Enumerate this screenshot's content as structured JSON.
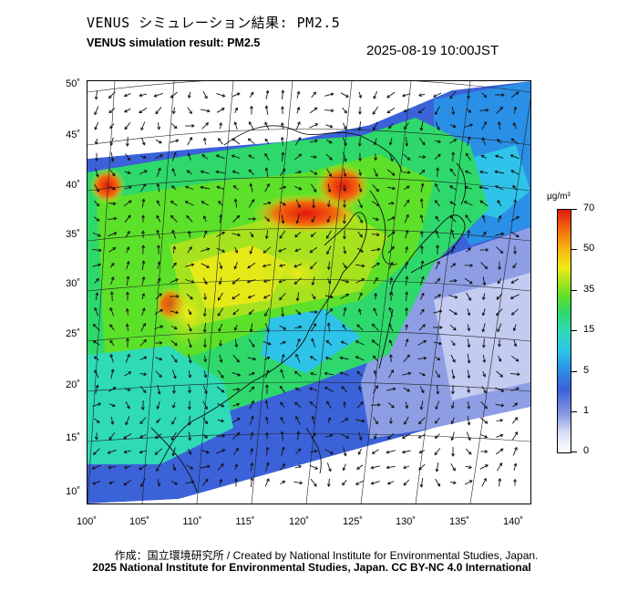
{
  "header": {
    "title_ja": "VENUS シミュレーション結果: PM2.5",
    "title_en": "VENUS simulation result: PM2.5",
    "timestamp": "2025-08-19 10:00JST"
  },
  "map": {
    "lat_labels": [
      "50˚",
      "45˚",
      "40˚",
      "35˚",
      "30˚",
      "25˚",
      "20˚",
      "15˚",
      "10˚"
    ],
    "lon_labels": [
      "100˚",
      "105˚",
      "110˚",
      "115˚",
      "120˚",
      "125˚",
      "130˚",
      "135˚",
      "140˚"
    ]
  },
  "colorbar": {
    "unit": "μg/m³",
    "labels": [
      "70",
      "50",
      "35",
      "15",
      "5",
      "1",
      "0"
    ]
  },
  "footer": {
    "credit_line": "作成：国立環境研究所 / Created by National Institute for Environmental Studies, Japan.",
    "license_line": "2025 National Institute for Environmental Studies, Japan. CC BY-NC 4.0 International"
  }
}
